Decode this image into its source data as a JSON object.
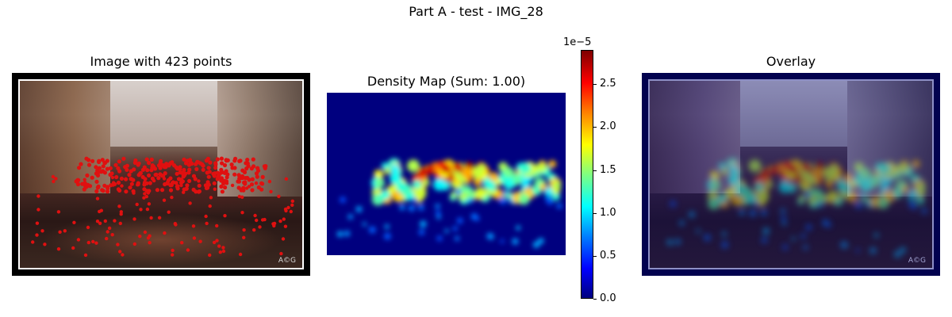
{
  "figure": {
    "suptitle": "Part A - test - IMG_28"
  },
  "panels": {
    "image": {
      "title": "Image with 423 points",
      "watermark": "A©G"
    },
    "density": {
      "title": "Density Map (Sum: 1.00)"
    },
    "overlay": {
      "title": "Overlay",
      "watermark": "A©G"
    }
  },
  "colorbar": {
    "offset_label": "1e−5",
    "colormap": "jet",
    "ticks": [
      "0.0",
      "0.5",
      "1.0",
      "1.5",
      "2.0",
      "2.5"
    ]
  },
  "chart_data": {
    "type": "heatmap",
    "title": "Density Map (Sum: 1.00)",
    "colormap": "jet",
    "color_range": [
      0,
      2.9
    ],
    "color_scale_factor": "1e-5",
    "colorbar_ticks": [
      0.0,
      0.5,
      1.0,
      1.5,
      2.0,
      2.5
    ],
    "sum": 1.0,
    "point_count": 423
  }
}
